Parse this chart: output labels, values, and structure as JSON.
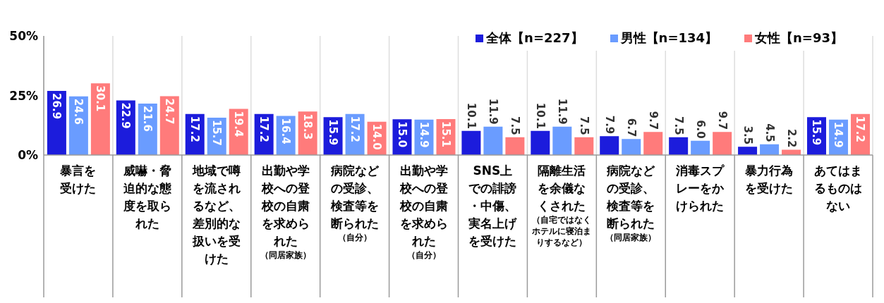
{
  "chart_data": {
    "type": "bar",
    "categories": [
      "暴言を受けた",
      "威嚇・脅迫的な態度を取られた",
      "地域で噂を流されるなど、差別的な扱いを受けた",
      "出勤や学校への登校の自粛を求められた（同居家族）",
      "病院などの受診、検査等を断られた（自分）",
      "出勤や学校への登校の自粛を求められた（自分）",
      "SNS上での誹謗・中傷、実名上げを受けた",
      "隔離生活を余儀なくされた（自宅ではなくホテルに寝泊まりするなど）",
      "病院などの受診、検査等を断られた（同居家族）",
      "消毒スプレーをかけられた",
      "暴力行為を受けた",
      "あてはまるものはない"
    ],
    "series": [
      {
        "name": "全体【n=227】",
        "color": "#1c1cdc",
        "values": [
          26.9,
          22.9,
          17.2,
          17.2,
          15.9,
          15.0,
          10.1,
          10.1,
          7.9,
          7.5,
          3.5,
          15.9
        ],
        "value_labels": [
          "26.9",
          "22.9",
          "17.2",
          "17.2",
          "15.9",
          "15.0",
          "10.1",
          "10.1",
          "7.9",
          "7.5",
          "3.5",
          "15.9"
        ]
      },
      {
        "name": "男性【n=134】",
        "color": "#6a9cff",
        "values": [
          24.6,
          21.6,
          15.7,
          16.4,
          17.2,
          14.9,
          11.9,
          11.9,
          6.7,
          6.0,
          4.5,
          14.9
        ],
        "value_labels": [
          "24.6",
          "21.6",
          "15.7",
          "16.4",
          "17.2",
          "14.9",
          "11.9",
          "11.9",
          "6.7",
          "6.0",
          "4.5",
          "14.9"
        ]
      },
      {
        "name": "女性【n=93】",
        "color": "#ff7b7b",
        "values": [
          30.1,
          24.7,
          19.4,
          18.3,
          14.0,
          15.1,
          7.5,
          7.5,
          9.7,
          9.7,
          2.2,
          17.2
        ],
        "value_labels": [
          "30.1",
          "24.7",
          "19.4",
          "18.3",
          "14.0",
          "15.1",
          "7.5",
          "7.5",
          "9.7",
          "9.7",
          "2.2",
          "17.2"
        ]
      }
    ],
    "ylim": [
      0,
      50
    ],
    "yticks": [
      {
        "value": 0,
        "label": "0%"
      },
      {
        "value": 25,
        "label": "25%"
      },
      {
        "value": 50,
        "label": "50%"
      }
    ],
    "grid": "x",
    "legend": "top right"
  }
}
